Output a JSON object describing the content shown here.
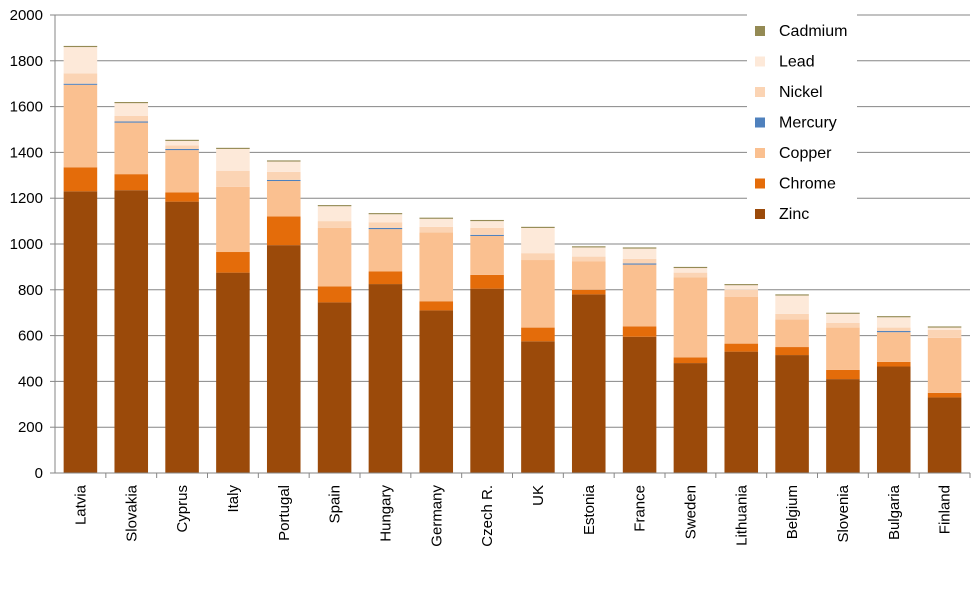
{
  "chart_data": {
    "type": "bar",
    "stacked": true,
    "categories": [
      "Latvia",
      "Slovakia",
      "Cyprus",
      "Italy",
      "Portugal",
      "Spain",
      "Hungary",
      "Germany",
      "Czech R.",
      "UK",
      "Estonia",
      "France",
      "Sweden",
      "Lithuania",
      "Belgium",
      "Slovenia",
      "Bulgaria",
      "Finland"
    ],
    "series": [
      {
        "name": "Zinc",
        "color": "#9b4a0a",
        "values": [
          1230,
          1235,
          1185,
          875,
          995,
          745,
          825,
          710,
          805,
          575,
          780,
          595,
          480,
          530,
          515,
          410,
          465,
          330
        ]
      },
      {
        "name": "Chrome",
        "color": "#e46c0a",
        "values": [
          105,
          70,
          40,
          90,
          125,
          70,
          55,
          40,
          60,
          60,
          20,
          45,
          25,
          35,
          35,
          40,
          20,
          20
        ]
      },
      {
        "name": "Copper",
        "color": "#fac090",
        "values": [
          360,
          225,
          185,
          285,
          155,
          255,
          185,
          300,
          170,
          295,
          125,
          270,
          350,
          205,
          120,
          185,
          130,
          240
        ]
      },
      {
        "name": "Mercury",
        "color": "#4f81bd",
        "values": [
          5,
          5,
          5,
          0,
          5,
          0,
          5,
          0,
          5,
          0,
          0,
          5,
          0,
          0,
          0,
          0,
          5,
          0
        ]
      },
      {
        "name": "Nickel",
        "color": "#fbd4b4",
        "values": [
          45,
          25,
          15,
          70,
          35,
          30,
          25,
          25,
          30,
          30,
          20,
          20,
          20,
          30,
          25,
          20,
          15,
          35
        ]
      },
      {
        "name": "Lead",
        "color": "#fde9d9",
        "values": [
          115,
          55,
          20,
          95,
          45,
          65,
          35,
          35,
          30,
          110,
          40,
          45,
          20,
          20,
          80,
          40,
          45,
          10
        ]
      },
      {
        "name": "Cadmium",
        "color": "#948a54",
        "values": [
          5,
          5,
          5,
          5,
          5,
          5,
          5,
          5,
          5,
          5,
          5,
          5,
          5,
          5,
          5,
          5,
          5,
          5
        ]
      }
    ],
    "y_ticks": [
      "0",
      "200",
      "400",
      "600",
      "800",
      "1000",
      "1200",
      "1400",
      "1600",
      "1800",
      "2000"
    ],
    "ylim": [
      0,
      2000
    ],
    "grid": true,
    "legend_position": "top-right",
    "legend_order": [
      "Cadmium",
      "Lead",
      "Nickel",
      "Mercury",
      "Copper",
      "Chrome",
      "Zinc"
    ]
  }
}
